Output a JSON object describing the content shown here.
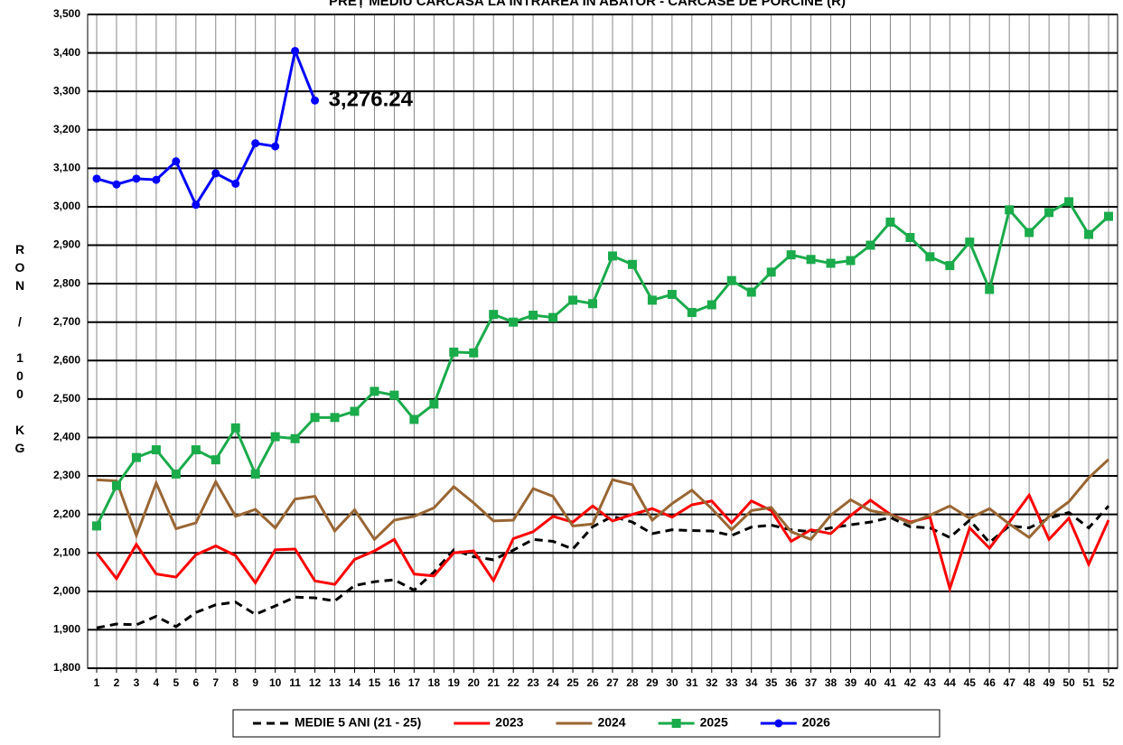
{
  "chart_data": {
    "type": "line",
    "title": "PREȚ MEDIU CARCASĂ LA INTRAREA ÎN ABATOR - CARCASE DE PORCINE (R)",
    "y_label": "RON / 100 KG",
    "categories": [
      "1",
      "2",
      "3",
      "4",
      "5",
      "6",
      "7",
      "8",
      "9",
      "10",
      "11",
      "12",
      "13",
      "14",
      "15",
      "16",
      "17",
      "18",
      "19",
      "20",
      "21",
      "22",
      "23",
      "24",
      "25",
      "26",
      "27",
      "28",
      "29",
      "30",
      "31",
      "32",
      "33",
      "34",
      "35",
      "36",
      "37",
      "38",
      "39",
      "40",
      "41",
      "42",
      "43",
      "44",
      "45",
      "46",
      "47",
      "48",
      "49",
      "50",
      "51",
      "52"
    ],
    "ylim": [
      1800,
      3500
    ],
    "yticks": [
      {
        "value": 1800,
        "label": "1,800"
      },
      {
        "value": 1900,
        "label": "1,900"
      },
      {
        "value": 2000,
        "label": "2,000"
      },
      {
        "value": 2100,
        "label": "2,100"
      },
      {
        "value": 2200,
        "label": "2,200"
      },
      {
        "value": 2300,
        "label": "2,300"
      },
      {
        "value": 2400,
        "label": "2,400"
      },
      {
        "value": 2500,
        "label": "2,500"
      },
      {
        "value": 2600,
        "label": "2,600"
      },
      {
        "value": 2700,
        "label": "2,700"
      },
      {
        "value": 2800,
        "label": "2,800"
      },
      {
        "value": 2900,
        "label": "2,900"
      },
      {
        "value": 3000,
        "label": "3,000"
      },
      {
        "value": 3100,
        "label": "3,100"
      },
      {
        "value": 3200,
        "label": "3,200"
      },
      {
        "value": 3300,
        "label": "3,300"
      },
      {
        "value": 3400,
        "label": "3,400"
      },
      {
        "value": 3500,
        "label": "3,500"
      }
    ],
    "grid": true,
    "legend": "bottom",
    "series": [
      {
        "name": "MEDIE 5 ANI (21 - 25)",
        "color": "#000000",
        "style": "dashed",
        "marker": "none",
        "values": [
          1905,
          1915,
          1913,
          1935,
          1908,
          1945,
          1965,
          1972,
          1940,
          1962,
          1985,
          1983,
          1975,
          2015,
          2025,
          2030,
          2003,
          2050,
          2108,
          2090,
          2082,
          2107,
          2135,
          2130,
          2110,
          2168,
          2195,
          2180,
          2150,
          2160,
          2158,
          2157,
          2145,
          2167,
          2172,
          2160,
          2155,
          2165,
          2173,
          2180,
          2192,
          2168,
          2165,
          2140,
          2185,
          2127,
          2170,
          2165,
          2190,
          2205,
          2165,
          2222
        ]
      },
      {
        "name": "2023",
        "color": "#ff0000",
        "style": "solid",
        "marker": "none",
        "values": [
          2100,
          2033,
          2122,
          2045,
          2037,
          2095,
          2118,
          2093,
          2022,
          2108,
          2110,
          2027,
          2018,
          2083,
          2105,
          2135,
          2045,
          2040,
          2100,
          2105,
          2028,
          2137,
          2155,
          2195,
          2180,
          2222,
          2183,
          2200,
          2215,
          2193,
          2225,
          2235,
          2178,
          2235,
          2210,
          2130,
          2160,
          2150,
          2197,
          2237,
          2200,
          2180,
          2193,
          2007,
          2165,
          2112,
          2180,
          2250,
          2135,
          2190,
          2070,
          2185
        ]
      },
      {
        "name": "2024",
        "color": "#996633",
        "style": "solid",
        "marker": "none",
        "values": [
          2290,
          2287,
          2145,
          2282,
          2163,
          2178,
          2285,
          2195,
          2213,
          2165,
          2240,
          2247,
          2157,
          2212,
          2135,
          2185,
          2195,
          2217,
          2272,
          2230,
          2183,
          2185,
          2267,
          2247,
          2170,
          2175,
          2290,
          2277,
          2185,
          2228,
          2263,
          2215,
          2160,
          2210,
          2218,
          2155,
          2135,
          2198,
          2238,
          2210,
          2200,
          2177,
          2198,
          2222,
          2190,
          2215,
          2175,
          2140,
          2195,
          2233,
          2295,
          2343
        ]
      },
      {
        "name": "2025",
        "color": "#1aab4b",
        "style": "solid",
        "marker": "square",
        "values": [
          2170,
          2275,
          2348,
          2368,
          2305,
          2368,
          2342,
          2425,
          2305,
          2402,
          2397,
          2452,
          2452,
          2468,
          2520,
          2510,
          2447,
          2487,
          2622,
          2620,
          2720,
          2700,
          2718,
          2712,
          2757,
          2748,
          2872,
          2850,
          2757,
          2772,
          2725,
          2745,
          2808,
          2778,
          2830,
          2875,
          2863,
          2853,
          2860,
          2900,
          2960,
          2920,
          2870,
          2847,
          2908,
          2785,
          2992,
          2933,
          2985,
          3013,
          2928,
          2975
        ]
      },
      {
        "name": "2026",
        "color": "#0000ff",
        "style": "solid",
        "marker": "circle",
        "values": [
          3073,
          3058,
          3073,
          3070,
          3118,
          3005,
          3087,
          3060,
          3165,
          3157,
          3405,
          3276.24,
          null,
          null,
          null,
          null,
          null,
          null,
          null,
          null,
          null,
          null,
          null,
          null,
          null,
          null,
          null,
          null,
          null,
          null,
          null,
          null,
          null,
          null,
          null,
          null,
          null,
          null,
          null,
          null,
          null,
          null,
          null,
          null,
          null,
          null,
          null,
          null,
          null,
          null,
          null,
          null
        ],
        "value_labels": [
          null,
          null,
          null,
          null,
          null,
          null,
          null,
          null,
          null,
          null,
          null,
          "3,276.24",
          null,
          null,
          null,
          null,
          null,
          null,
          null,
          null,
          null,
          null,
          null,
          null,
          null,
          null,
          null,
          null,
          null,
          null,
          null,
          null,
          null,
          null,
          null,
          null,
          null,
          null,
          null,
          null,
          null,
          null,
          null,
          null,
          null,
          null,
          null,
          null,
          null,
          null,
          null,
          null
        ]
      }
    ]
  }
}
